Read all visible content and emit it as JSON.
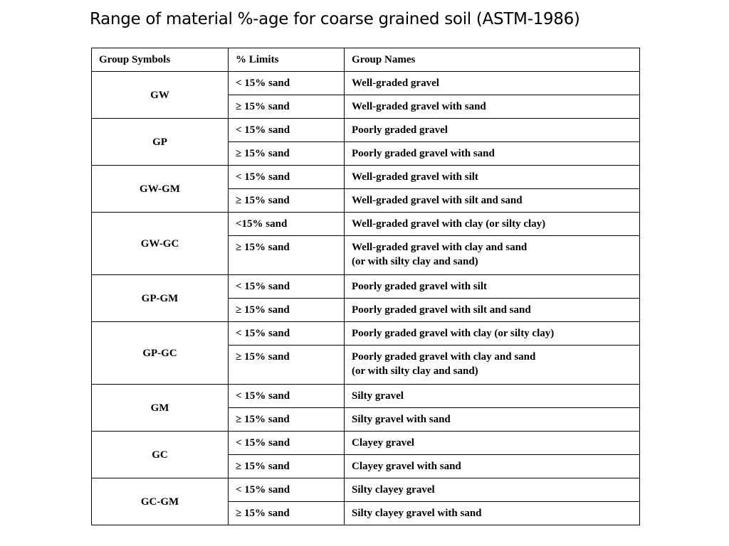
{
  "title": "Range of material %-age for coarse grained soil (ASTM-1986)",
  "table": {
    "headers": [
      "Group Symbols",
      "% Limits",
      "Group Names"
    ],
    "groups": [
      {
        "symbol": "GW",
        "rows": [
          {
            "limit": "< 15% sand",
            "name": "Well-graded gravel"
          },
          {
            "limit": "≥ 15% sand",
            "name": "Well-graded gravel with sand"
          }
        ]
      },
      {
        "symbol": "GP",
        "rows": [
          {
            "limit": "< 15% sand",
            "name": "Poorly graded gravel"
          },
          {
            "limit": "≥ 15% sand",
            "name": "Poorly graded gravel with sand"
          }
        ]
      },
      {
        "symbol": "GW-GM",
        "rows": [
          {
            "limit": "< 15% sand",
            "name": "Well-graded gravel with silt"
          },
          {
            "limit": "≥ 15% sand",
            "name": "Well-graded gravel with silt and sand"
          }
        ]
      },
      {
        "symbol": "GW-GC",
        "rows": [
          {
            "limit": "<15% sand",
            "name": "Well-graded gravel with clay (or silty clay)"
          },
          {
            "limit": "≥ 15% sand",
            "name": "Well-graded gravel with clay and sand",
            "name2": "(or with silty clay and sand)"
          }
        ]
      },
      {
        "symbol": "GP-GM",
        "rows": [
          {
            "limit": "< 15% sand",
            "name": "Poorly graded gravel with silt"
          },
          {
            "limit": "≥ 15% sand",
            "name": "Poorly graded gravel with silt and sand"
          }
        ]
      },
      {
        "symbol": "GP-GC",
        "rows": [
          {
            "limit": "< 15% sand",
            "name": "Poorly graded gravel with clay (or silty clay)"
          },
          {
            "limit": "≥ 15% sand",
            "name": "Poorly graded gravel with clay and sand",
            "name2": "(or with silty clay and sand)"
          }
        ]
      },
      {
        "symbol": "GM",
        "rows": [
          {
            "limit": "< 15% sand",
            "name": "Silty gravel"
          },
          {
            "limit": "≥ 15% sand",
            "name": "Silty gravel with sand"
          }
        ]
      },
      {
        "symbol": "GC",
        "rows": [
          {
            "limit": "< 15% sand",
            "name": "Clayey gravel"
          },
          {
            "limit": "≥ 15% sand",
            "name": "Clayey gravel with sand"
          }
        ]
      },
      {
        "symbol": "GC-GM",
        "rows": [
          {
            "limit": "< 15% sand",
            "name": "Silty clayey gravel"
          },
          {
            "limit": "≥ 15% sand",
            "name": "Silty clayey gravel with sand"
          }
        ]
      }
    ]
  }
}
